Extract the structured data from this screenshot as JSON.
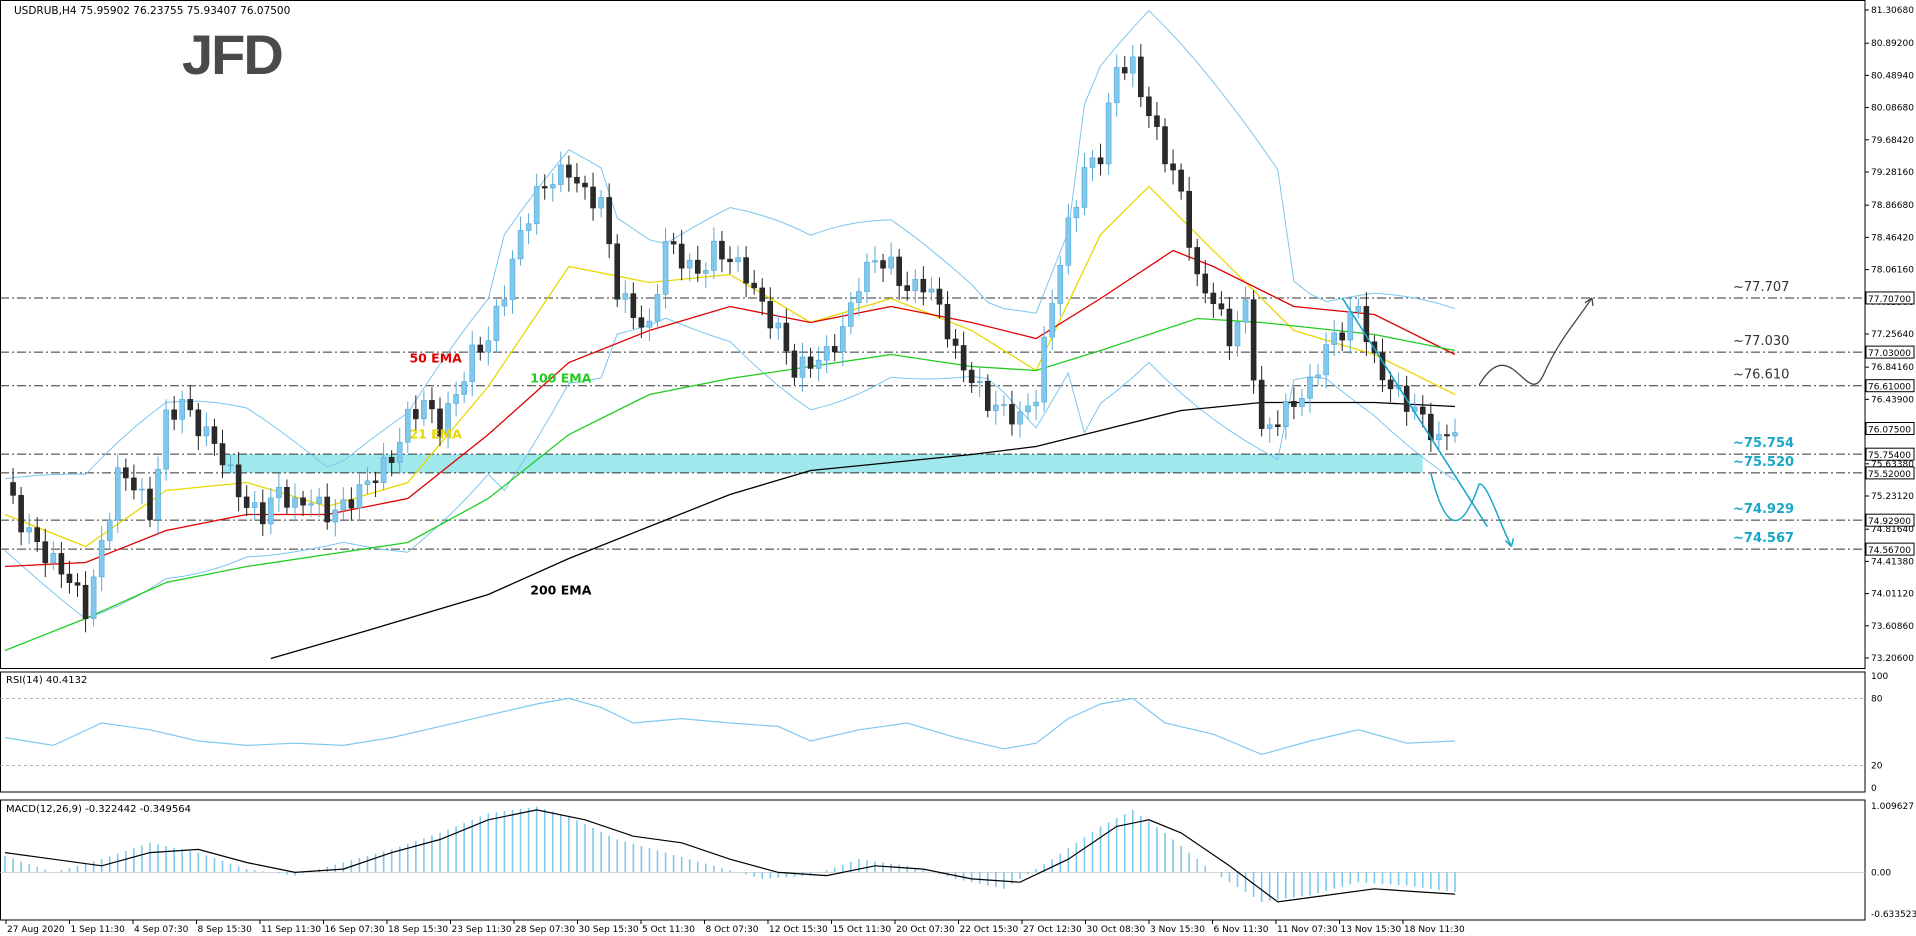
{
  "header": {
    "symbol_info": "USDRUB,H4  75.95902 76.23755 75.93407 76.07500",
    "logo": "JFD"
  },
  "price_scale_ticks": [
    "81.30680",
    "80.89200",
    "80.48940",
    "80.08680",
    "79.68420",
    "79.28160",
    "78.86680",
    "78.46420",
    "78.06160",
    "77.65900",
    "77.25640",
    "76.84160",
    "76.43900",
    "76.03640",
    "75.63380",
    "75.23120",
    "74.81640",
    "74.41380",
    "74.01120",
    "73.60860",
    "73.20600"
  ],
  "price_levels": [
    {
      "label": "~77.707",
      "tag": "77.70700",
      "value": 77.707
    },
    {
      "label": "~77.030",
      "tag": "77.03000",
      "value": 77.03
    },
    {
      "label": "~76.610",
      "tag": "76.61000",
      "value": 76.61
    },
    {
      "label": "~75.754",
      "tag": "75.75400",
      "value": 75.754
    },
    {
      "label": "~75.520",
      "tag": "75.52000",
      "value": 75.52
    },
    {
      "label": "~74.929",
      "tag": "74.92900",
      "value": 74.929
    },
    {
      "label": "~74.567",
      "tag": "74.56700",
      "value": 74.567
    }
  ],
  "current_price_tag": "76.07500",
  "ema_labels": [
    {
      "text": "21 EMA",
      "color": "#e8d800"
    },
    {
      "text": "50 EMA",
      "color": "#e00000"
    },
    {
      "text": "100 EMA",
      "color": "#22cc22"
    },
    {
      "text": "200 EMA",
      "color": "#000000"
    }
  ],
  "rsi": {
    "label": "RSI(14) 40.4132",
    "levels": [
      "80",
      "20"
    ],
    "scale": [
      "100",
      "0"
    ]
  },
  "macd": {
    "label": "MACD(12,26,9) -0.322442 -0.349564",
    "scale": [
      "1.009627",
      "0.00",
      "-0.633523"
    ]
  },
  "x_axis_labels": [
    "27 Aug 2020",
    "1 Sep 11:30",
    "4 Sep 07:30",
    "8 Sep 15:30",
    "11 Sep 11:30",
    "16 Sep 07:30",
    "18 Sep 15:30",
    "23 Sep 11:30",
    "28 Sep 07:30",
    "30 Sep 15:30",
    "5 Oct 11:30",
    "8 Oct 07:30",
    "12 Oct 15:30",
    "15 Oct 11:30",
    "20 Oct 07:30",
    "22 Oct 15:30",
    "27 Oct 12:30",
    "30 Oct 08:30",
    "3 Nov 15:30",
    "6 Nov 11:30",
    "11 Nov 07:30",
    "13 Nov 15:30",
    "18 Nov 11:30"
  ],
  "colors": {
    "up": "#7fc8ee",
    "down": "#2a2a2a",
    "zone": "#7fe0e6",
    "support": "#1aa7c7",
    "resistance_text": "#333333",
    "bollinger": "#7cc6ee"
  },
  "chart_data": {
    "type": "candlestick",
    "symbol": "USDRUB",
    "timeframe": "H4",
    "ylim": [
      73.206,
      81.3068
    ],
    "y_ticks": [
      81.3068,
      80.892,
      80.4894,
      80.0868,
      79.6842,
      79.2816,
      78.8668,
      78.4642,
      78.0616,
      77.659,
      77.2564,
      76.8416,
      76.439,
      76.0364,
      75.6338,
      75.2312,
      74.8164,
      74.4138,
      74.0112,
      73.6086,
      73.206
    ],
    "ohlc_last": {
      "open": 75.95902,
      "high": 76.23755,
      "low": 75.93407,
      "close": 76.075
    },
    "close_path": [
      [
        0,
        75.4
      ],
      [
        2,
        74.9
      ],
      [
        5,
        74.5
      ],
      [
        8,
        74.2
      ],
      [
        10,
        73.8
      ],
      [
        12,
        74.6
      ],
      [
        14,
        75.5
      ],
      [
        16,
        75.4
      ],
      [
        18,
        75.0
      ],
      [
        20,
        76.2
      ],
      [
        22,
        76.4
      ],
      [
        24,
        76.1
      ],
      [
        26,
        75.9
      ],
      [
        28,
        75.5
      ],
      [
        30,
        75.1
      ],
      [
        32,
        75.0
      ],
      [
        34,
        75.3
      ],
      [
        36,
        75.1
      ],
      [
        38,
        75.2
      ],
      [
        40,
        75.0
      ],
      [
        42,
        75.1
      ],
      [
        44,
        75.3
      ],
      [
        46,
        75.5
      ],
      [
        48,
        75.7
      ],
      [
        50,
        76.2
      ],
      [
        52,
        76.4
      ],
      [
        54,
        76.1
      ],
      [
        56,
        76.5
      ],
      [
        58,
        77.0
      ],
      [
        60,
        77.2
      ],
      [
        62,
        77.8
      ],
      [
        64,
        78.5
      ],
      [
        66,
        79.0
      ],
      [
        68,
        79.2
      ],
      [
        70,
        79.3
      ],
      [
        72,
        79.0
      ],
      [
        74,
        78.9
      ],
      [
        76,
        77.8
      ],
      [
        78,
        77.5
      ],
      [
        80,
        77.3
      ],
      [
        82,
        78.4
      ],
      [
        84,
        78.2
      ],
      [
        86,
        78.0
      ],
      [
        88,
        78.3
      ],
      [
        90,
        78.2
      ],
      [
        92,
        78.0
      ],
      [
        94,
        77.6
      ],
      [
        96,
        77.3
      ],
      [
        98,
        76.8
      ],
      [
        100,
        76.9
      ],
      [
        102,
        77.0
      ],
      [
        104,
        77.3
      ],
      [
        106,
        77.9
      ],
      [
        108,
        78.2
      ],
      [
        110,
        78.1
      ],
      [
        112,
        77.8
      ],
      [
        114,
        77.9
      ],
      [
        116,
        77.6
      ],
      [
        118,
        77.0
      ],
      [
        120,
        76.7
      ],
      [
        122,
        76.4
      ],
      [
        124,
        76.3
      ],
      [
        126,
        76.2
      ],
      [
        128,
        76.5
      ],
      [
        130,
        77.7
      ],
      [
        132,
        78.6
      ],
      [
        134,
        79.3
      ],
      [
        136,
        79.5
      ],
      [
        138,
        80.6
      ],
      [
        140,
        80.6
      ],
      [
        142,
        80.0
      ],
      [
        144,
        79.5
      ],
      [
        146,
        79.0
      ],
      [
        148,
        77.9
      ],
      [
        150,
        77.7
      ],
      [
        152,
        77.2
      ],
      [
        154,
        77.6
      ],
      [
        156,
        76.0
      ],
      [
        158,
        76.2
      ],
      [
        160,
        76.4
      ],
      [
        162,
        76.6
      ],
      [
        164,
        77.1
      ],
      [
        166,
        77.3
      ],
      [
        168,
        77.6
      ],
      [
        170,
        76.9
      ],
      [
        172,
        76.6
      ],
      [
        174,
        76.4
      ],
      [
        176,
        76.2
      ],
      [
        178,
        75.9
      ],
      [
        180,
        76.1
      ]
    ],
    "indicators": [
      {
        "name": "21 EMA",
        "type": "ema",
        "period": 21,
        "color": "#e8d800",
        "path": [
          [
            0,
            75.0
          ],
          [
            10,
            74.6
          ],
          [
            20,
            75.3
          ],
          [
            30,
            75.4
          ],
          [
            40,
            75.1
          ],
          [
            50,
            75.4
          ],
          [
            60,
            76.6
          ],
          [
            70,
            78.1
          ],
          [
            80,
            77.9
          ],
          [
            90,
            78.0
          ],
          [
            100,
            77.4
          ],
          [
            110,
            77.7
          ],
          [
            120,
            77.3
          ],
          [
            128,
            76.8
          ],
          [
            136,
            78.5
          ],
          [
            142,
            79.1
          ],
          [
            150,
            78.3
          ],
          [
            160,
            77.3
          ],
          [
            170,
            77.0
          ],
          [
            180,
            76.5
          ]
        ]
      },
      {
        "name": "50 EMA",
        "type": "ema",
        "period": 50,
        "color": "#e00000",
        "path": [
          [
            0,
            74.35
          ],
          [
            10,
            74.4
          ],
          [
            20,
            74.8
          ],
          [
            30,
            75.0
          ],
          [
            40,
            75.0
          ],
          [
            50,
            75.2
          ],
          [
            60,
            76.0
          ],
          [
            70,
            76.9
          ],
          [
            80,
            77.3
          ],
          [
            90,
            77.6
          ],
          [
            100,
            77.4
          ],
          [
            110,
            77.6
          ],
          [
            120,
            77.4
          ],
          [
            128,
            77.2
          ],
          [
            136,
            77.7
          ],
          [
            145,
            78.3
          ],
          [
            150,
            78.1
          ],
          [
            160,
            77.6
          ],
          [
            170,
            77.5
          ],
          [
            180,
            77.0
          ]
        ]
      },
      {
        "name": "100 EMA",
        "type": "ema",
        "period": 100,
        "color": "#22cc22",
        "path": [
          [
            0,
            73.3
          ],
          [
            10,
            73.7
          ],
          [
            20,
            74.15
          ],
          [
            30,
            74.35
          ],
          [
            40,
            74.5
          ],
          [
            50,
            74.65
          ],
          [
            60,
            75.2
          ],
          [
            70,
            76.0
          ],
          [
            80,
            76.5
          ],
          [
            90,
            76.7
          ],
          [
            100,
            76.85
          ],
          [
            110,
            77.0
          ],
          [
            120,
            76.85
          ],
          [
            128,
            76.8
          ],
          [
            136,
            77.05
          ],
          [
            148,
            77.45
          ],
          [
            156,
            77.4
          ],
          [
            170,
            77.25
          ],
          [
            180,
            77.05
          ]
        ]
      },
      {
        "name": "200 EMA",
        "type": "ema",
        "period": 200,
        "color": "#000000",
        "path": [
          [
            33,
            73.2
          ],
          [
            45,
            73.55
          ],
          [
            60,
            74.0
          ],
          [
            70,
            74.45
          ],
          [
            80,
            74.85
          ],
          [
            90,
            75.25
          ],
          [
            100,
            75.55
          ],
          [
            110,
            75.65
          ],
          [
            120,
            75.75
          ],
          [
            128,
            75.85
          ],
          [
            136,
            76.05
          ],
          [
            146,
            76.3
          ],
          [
            156,
            76.4
          ],
          [
            170,
            76.4
          ],
          [
            180,
            76.35
          ]
        ]
      }
    ],
    "rsi": {
      "name": "RSI(14)",
      "value": 40.4132,
      "levels": [
        80,
        20
      ],
      "ylim": [
        0,
        100
      ],
      "path": [
        [
          0,
          45
        ],
        [
          6,
          38
        ],
        [
          12,
          58
        ],
        [
          18,
          52
        ],
        [
          24,
          42
        ],
        [
          30,
          38
        ],
        [
          36,
          40
        ],
        [
          42,
          38
        ],
        [
          48,
          45
        ],
        [
          54,
          55
        ],
        [
          60,
          65
        ],
        [
          66,
          75
        ],
        [
          70,
          80
        ],
        [
          74,
          72
        ],
        [
          78,
          58
        ],
        [
          84,
          62
        ],
        [
          90,
          58
        ],
        [
          96,
          55
        ],
        [
          100,
          42
        ],
        [
          106,
          52
        ],
        [
          112,
          58
        ],
        [
          118,
          45
        ],
        [
          124,
          35
        ],
        [
          128,
          40
        ],
        [
          132,
          62
        ],
        [
          136,
          75
        ],
        [
          140,
          80
        ],
        [
          144,
          58
        ],
        [
          150,
          48
        ],
        [
          156,
          30
        ],
        [
          162,
          42
        ],
        [
          168,
          52
        ],
        [
          174,
          40
        ],
        [
          180,
          42
        ]
      ]
    },
    "macd": {
      "name": "MACD(12,26,9)",
      "main": -0.322442,
      "signal": -0.349564,
      "ylim": [
        -0.633523,
        1.009627
      ],
      "hist": [
        [
          0,
          0.25
        ],
        [
          6,
          0.0
        ],
        [
          12,
          0.2
        ],
        [
          18,
          0.45
        ],
        [
          24,
          0.3
        ],
        [
          30,
          0.05
        ],
        [
          36,
          -0.05
        ],
        [
          42,
          0.15
        ],
        [
          48,
          0.35
        ],
        [
          54,
          0.6
        ],
        [
          60,
          0.9
        ],
        [
          66,
          1.0
        ],
        [
          70,
          0.85
        ],
        [
          76,
          0.5
        ],
        [
          82,
          0.3
        ],
        [
          88,
          0.1
        ],
        [
          94,
          -0.1
        ],
        [
          100,
          -0.05
        ],
        [
          106,
          0.2
        ],
        [
          112,
          0.1
        ],
        [
          118,
          -0.1
        ],
        [
          124,
          -0.25
        ],
        [
          130,
          0.2
        ],
        [
          136,
          0.7
        ],
        [
          140,
          0.95
        ],
        [
          144,
          0.6
        ],
        [
          150,
          0.0
        ],
        [
          156,
          -0.45
        ],
        [
          162,
          -0.35
        ],
        [
          168,
          -0.15
        ],
        [
          174,
          -0.2
        ],
        [
          180,
          -0.3
        ]
      ],
      "signal_path": [
        [
          0,
          0.3
        ],
        [
          6,
          0.2
        ],
        [
          12,
          0.1
        ],
        [
          18,
          0.3
        ],
        [
          24,
          0.35
        ],
        [
          30,
          0.15
        ],
        [
          36,
          0.0
        ],
        [
          42,
          0.05
        ],
        [
          48,
          0.3
        ],
        [
          54,
          0.5
        ],
        [
          60,
          0.8
        ],
        [
          66,
          0.95
        ],
        [
          72,
          0.8
        ],
        [
          78,
          0.55
        ],
        [
          84,
          0.45
        ],
        [
          90,
          0.2
        ],
        [
          96,
          0.0
        ],
        [
          102,
          -0.05
        ],
        [
          108,
          0.1
        ],
        [
          114,
          0.05
        ],
        [
          120,
          -0.1
        ],
        [
          126,
          -0.15
        ],
        [
          132,
          0.2
        ],
        [
          138,
          0.7
        ],
        [
          142,
          0.8
        ],
        [
          146,
          0.6
        ],
        [
          152,
          0.1
        ],
        [
          158,
          -0.45
        ],
        [
          164,
          -0.35
        ],
        [
          170,
          -0.25
        ],
        [
          176,
          -0.3
        ],
        [
          180,
          -0.33
        ]
      ]
    }
  }
}
